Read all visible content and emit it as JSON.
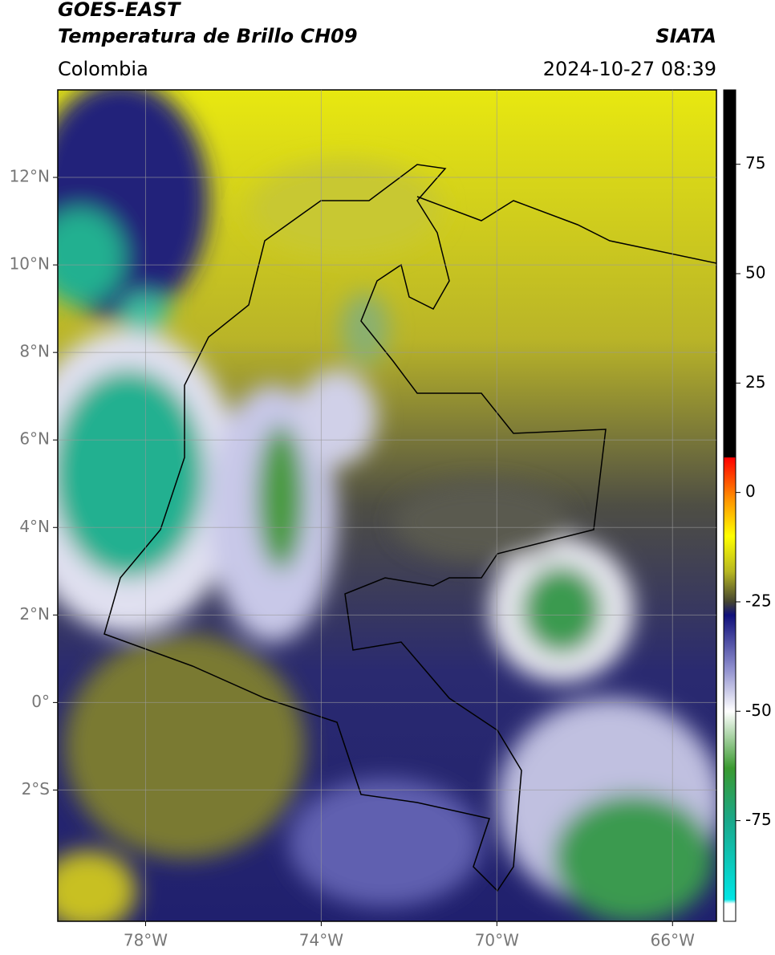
{
  "header": {
    "title": "GOES-EAST",
    "subtitle": "Temperatura de Brillo CH09",
    "source": "SIATA",
    "region": "Colombia",
    "datetime": "2024-10-27 08:39"
  },
  "map": {
    "xlim": [
      -80,
      -65
    ],
    "ylim": [
      -5,
      14
    ],
    "xticks": [
      {
        "value": -78,
        "label": "78°W"
      },
      {
        "value": -74,
        "label": "74°W"
      },
      {
        "value": -70,
        "label": "70°W"
      },
      {
        "value": -66,
        "label": "66°W"
      }
    ],
    "yticks": [
      {
        "value": 12,
        "label": "12°N"
      },
      {
        "value": 10,
        "label": "10°N"
      },
      {
        "value": 8,
        "label": "8°N"
      },
      {
        "value": 6,
        "label": "6°N"
      },
      {
        "value": 4,
        "label": "4°N"
      },
      {
        "value": 2,
        "label": "2°N"
      },
      {
        "value": 0,
        "label": "0°"
      },
      {
        "value": -2,
        "label": "2°S"
      }
    ],
    "grid": true
  },
  "colorbar": {
    "lim": [
      -98,
      92
    ],
    "ticks": [
      75,
      50,
      25,
      0,
      -25,
      -50,
      -75
    ],
    "colormap": [
      {
        "value": -98,
        "color": "#ffffff"
      },
      {
        "value": -94,
        "color": "#ffffff"
      },
      {
        "value": -93,
        "color": "#00e5e5"
      },
      {
        "value": -75,
        "color": "#1aa88a"
      },
      {
        "value": -63,
        "color": "#3a9a30"
      },
      {
        "value": -50,
        "color": "#ffffff"
      },
      {
        "value": -40,
        "color": "#8c8ccc"
      },
      {
        "value": -28,
        "color": "#10107a"
      },
      {
        "value": -25,
        "color": "#444430"
      },
      {
        "value": -18,
        "color": "#b8b820"
      },
      {
        "value": -10,
        "color": "#ffff00"
      },
      {
        "value": -2,
        "color": "#ff9900"
      },
      {
        "value": 8,
        "color": "#ff0000"
      },
      {
        "value": 8.01,
        "color": "#000000"
      },
      {
        "value": 92,
        "color": "#000000"
      }
    ]
  }
}
